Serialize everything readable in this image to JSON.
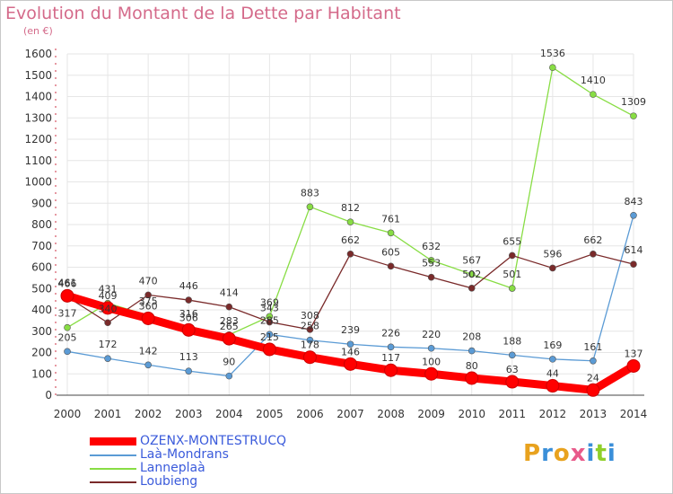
{
  "header": {
    "title": "Evolution du Montant de la Dette par Habitant",
    "subtitle": "(en €)"
  },
  "brand": {
    "text": "Proxiti",
    "colors": [
      "#e8a21e",
      "#3a8fd9",
      "#e8a21e",
      "#e85a8a",
      "#3a8fd9",
      "#8fcf2a",
      "#3a8fd9"
    ]
  },
  "chart_data": {
    "type": "line",
    "title": "Evolution du Montant de la Dette par Habitant",
    "ylabel": "(en €)",
    "xlabel": "",
    "x": [
      "2000",
      "2001",
      "2002",
      "2003",
      "2004",
      "2005",
      "2006",
      "2007",
      "2008",
      "2009",
      "2010",
      "2011",
      "2012",
      "2013",
      "2014"
    ],
    "ylim": [
      0,
      1600
    ],
    "yticks": [
      0,
      100,
      200,
      300,
      400,
      500,
      600,
      700,
      800,
      900,
      1000,
      1100,
      1200,
      1300,
      1400,
      1500,
      1600
    ],
    "grid": true,
    "legend_position": "bottom-left",
    "series": [
      {
        "name": "OZENX-MONTESTRUCQ",
        "color": "#ff0000",
        "values": [
          466,
          409,
          360,
          306,
          265,
          215,
          178,
          146,
          117,
          100,
          80,
          63,
          44,
          24,
          137
        ],
        "labels": [
          "466",
          "409",
          "360",
          "306",
          "265",
          "215",
          "178",
          "146",
          "117",
          "100",
          "80",
          "63",
          "44",
          "24",
          "137"
        ]
      },
      {
        "name": "Laà-Mondrans",
        "color": "#5b9bd5",
        "values": [
          205,
          172,
          142,
          113,
          90,
          285,
          258,
          239,
          226,
          220,
          208,
          188,
          169,
          161,
          843
        ],
        "labels": [
          "205",
          "172",
          "142",
          "113",
          "90",
          "285",
          "258",
          "239",
          "226",
          "220",
          "208",
          "188",
          "169",
          "161",
          "843"
        ]
      },
      {
        "name": "Lanneplaà",
        "color": "#88dd44",
        "values": [
          317,
          431,
          375,
          316,
          283,
          369,
          883,
          812,
          761,
          632,
          567,
          501,
          1536,
          1410,
          1309
        ],
        "labels": [
          "317",
          "431",
          "375",
          "316",
          "283",
          "369",
          "883",
          "812",
          "761",
          "632",
          "567",
          "501",
          "1536",
          "1410",
          "1309"
        ]
      },
      {
        "name": "Loubieng",
        "color": "#7a2a2a",
        "values": [
          461,
          340,
          470,
          446,
          414,
          343,
          308,
          662,
          605,
          553,
          502,
          655,
          596,
          662,
          614
        ],
        "labels": [
          "461",
          "340",
          "470",
          "446",
          "414",
          "343",
          "308",
          "662",
          "605",
          "553",
          "502",
          "655",
          "596",
          "662",
          "614"
        ]
      }
    ]
  }
}
